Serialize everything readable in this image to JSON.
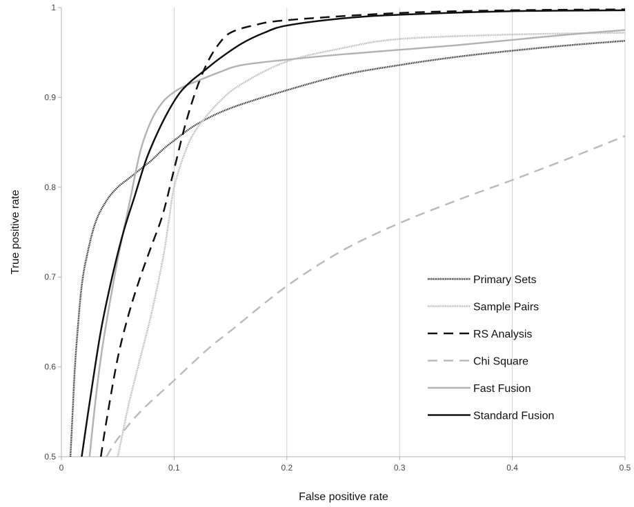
{
  "chart_data": {
    "type": "line",
    "xlabel": "False positive rate",
    "ylabel": "True positive rate",
    "xlim": [
      0,
      0.5
    ],
    "ylim": [
      0.5,
      1
    ],
    "xticks": [
      "0",
      "0.1",
      "0.2",
      "0.3",
      "0.4",
      "0.5"
    ],
    "yticks": [
      "0.5",
      "0.6",
      "0.7",
      "0.8",
      "0.9",
      "1"
    ],
    "grid": {
      "vertical": true,
      "horizontal": false
    },
    "legend": "right-center",
    "series": [
      {
        "name": "Primary Sets",
        "style": {
          "color": "#333333",
          "dash": "dotted",
          "width": 2.5
        },
        "x": [
          0.008,
          0.01,
          0.012,
          0.015,
          0.018,
          0.022,
          0.03,
          0.04,
          0.05,
          0.06,
          0.07,
          0.08,
          0.09,
          0.1,
          0.12,
          0.15,
          0.2,
          0.25,
          0.3,
          0.35,
          0.4,
          0.45,
          0.5
        ],
        "y": [
          0.5,
          0.55,
          0.6,
          0.65,
          0.69,
          0.72,
          0.76,
          0.785,
          0.8,
          0.81,
          0.82,
          0.83,
          0.842,
          0.852,
          0.87,
          0.888,
          0.908,
          0.925,
          0.936,
          0.945,
          0.952,
          0.958,
          0.963
        ]
      },
      {
        "name": "Sample Pairs",
        "style": {
          "color": "#bbbbbb",
          "dash": "dotted",
          "width": 2.5
        },
        "x": [
          0.05,
          0.055,
          0.06,
          0.07,
          0.08,
          0.09,
          0.095,
          0.1,
          0.11,
          0.12,
          0.14,
          0.16,
          0.2,
          0.25,
          0.3,
          0.4,
          0.5
        ],
        "y": [
          0.5,
          0.53,
          0.56,
          0.61,
          0.66,
          0.72,
          0.76,
          0.8,
          0.84,
          0.865,
          0.895,
          0.915,
          0.94,
          0.955,
          0.965,
          0.97,
          0.972
        ]
      },
      {
        "name": "RS Analysis",
        "style": {
          "color": "#111111",
          "dash": "long-dash",
          "width": 2.5
        },
        "x": [
          0.035,
          0.04,
          0.05,
          0.06,
          0.07,
          0.08,
          0.09,
          0.1,
          0.11,
          0.12,
          0.13,
          0.14,
          0.15,
          0.17,
          0.2,
          0.3,
          0.4,
          0.5
        ],
        "y": [
          0.5,
          0.54,
          0.61,
          0.66,
          0.7,
          0.735,
          0.77,
          0.82,
          0.87,
          0.91,
          0.94,
          0.96,
          0.972,
          0.98,
          0.986,
          0.994,
          0.997,
          0.998
        ]
      },
      {
        "name": "Chi Square",
        "style": {
          "color": "#bbbbbb",
          "dash": "long-dash",
          "width": 2.5
        },
        "x": [
          0.04,
          0.05,
          0.07,
          0.1,
          0.13,
          0.15,
          0.2,
          0.25,
          0.3,
          0.35,
          0.4,
          0.45,
          0.5
        ],
        "y": [
          0.5,
          0.52,
          0.55,
          0.585,
          0.62,
          0.64,
          0.69,
          0.73,
          0.76,
          0.785,
          0.808,
          0.832,
          0.857
        ]
      },
      {
        "name": "Fast Fusion",
        "style": {
          "color": "#b3b3b3",
          "dash": "solid",
          "width": 2.5
        },
        "x": [
          0.025,
          0.03,
          0.035,
          0.04,
          0.05,
          0.06,
          0.07,
          0.08,
          0.09,
          0.1,
          0.11,
          0.12,
          0.14,
          0.16,
          0.2,
          0.25,
          0.3,
          0.35,
          0.4,
          0.45,
          0.5
        ],
        "y": [
          0.5,
          0.56,
          0.61,
          0.65,
          0.72,
          0.78,
          0.84,
          0.875,
          0.895,
          0.906,
          0.913,
          0.918,
          0.928,
          0.936,
          0.942,
          0.948,
          0.953,
          0.958,
          0.964,
          0.97,
          0.975
        ]
      },
      {
        "name": "Standard Fusion",
        "style": {
          "color": "#111111",
          "dash": "solid",
          "width": 2.5
        },
        "x": [
          0.018,
          0.025,
          0.035,
          0.045,
          0.055,
          0.065,
          0.075,
          0.085,
          0.095,
          0.105,
          0.115,
          0.125,
          0.14,
          0.16,
          0.18,
          0.2,
          0.25,
          0.3,
          0.4,
          0.5
        ],
        "y": [
          0.5,
          0.56,
          0.64,
          0.7,
          0.75,
          0.79,
          0.83,
          0.86,
          0.885,
          0.905,
          0.918,
          0.928,
          0.943,
          0.96,
          0.972,
          0.98,
          0.988,
          0.992,
          0.996,
          0.997
        ]
      }
    ]
  }
}
